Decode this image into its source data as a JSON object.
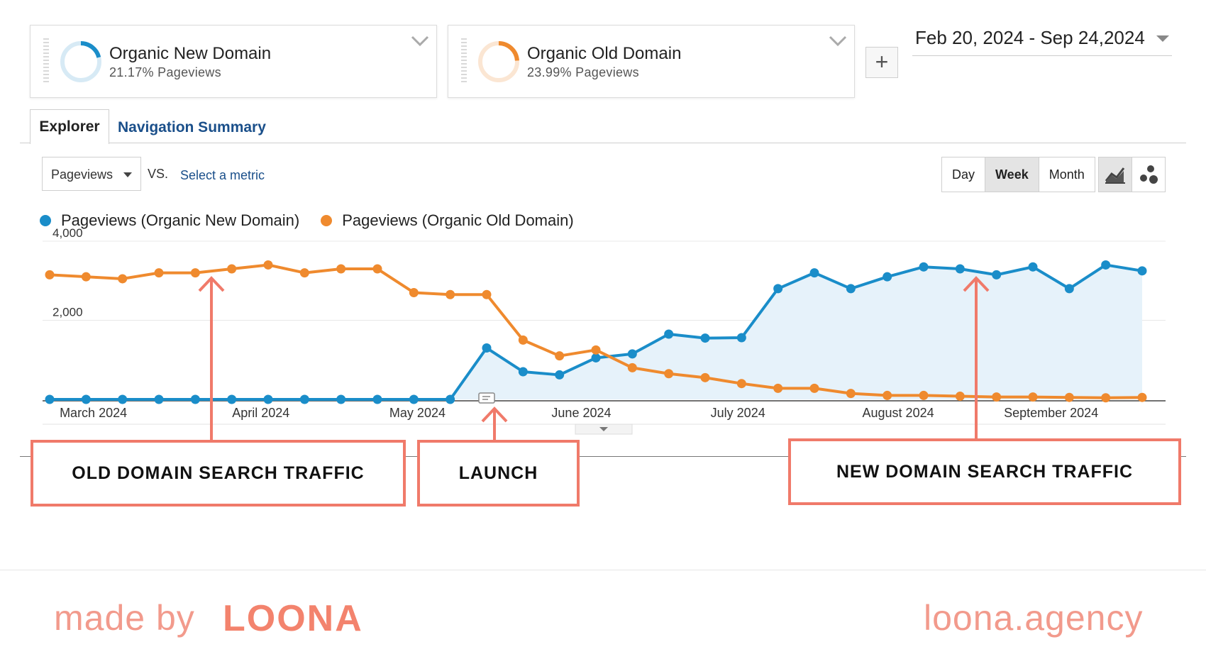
{
  "segments": [
    {
      "title": "Organic New Domain",
      "subtitle": "21.17% Pageviews",
      "color": "#1a8dc9",
      "share": 0.2117
    },
    {
      "title": "Organic Old Domain",
      "subtitle": "23.99% Pageviews",
      "color": "#ef8a2e",
      "share": 0.2399
    }
  ],
  "add_segment_label": "+",
  "date_range": "Feb 20, 2024 - Sep 24,2024",
  "tabs": [
    {
      "label": "Explorer",
      "active": true
    },
    {
      "label": "Navigation Summary",
      "active": false
    }
  ],
  "metric": {
    "selected": "Pageviews",
    "vs": "VS.",
    "compare_placeholder": "Select a metric"
  },
  "period_buttons": [
    {
      "label": "Day",
      "active": false
    },
    {
      "label": "Week",
      "active": true
    },
    {
      "label": "Month",
      "active": false
    }
  ],
  "view_buttons": [
    {
      "icon": "line-chart-icon",
      "active": true
    },
    {
      "icon": "motion-chart-icon",
      "active": false
    }
  ],
  "legend": [
    {
      "label": "Pageviews (Organic New Domain)",
      "color": "#1a8dc9"
    },
    {
      "label": "Pageviews (Organic Old Domain)",
      "color": "#ef8a2e"
    }
  ],
  "chart_data": {
    "type": "line",
    "title": "",
    "xlabel": "",
    "ylabel": "",
    "ylim": [
      0,
      4000
    ],
    "yticks": [
      "4,000",
      "2,000"
    ],
    "month_labels": [
      "March 2024",
      "April 2024",
      "May 2024",
      "June 2024",
      "July 2024",
      "August 2024",
      "September 2024"
    ],
    "x_weeks": [
      "2024-02-20",
      "2024-02-27",
      "2024-03-05",
      "2024-03-12",
      "2024-03-19",
      "2024-03-26",
      "2024-04-02",
      "2024-04-09",
      "2024-04-16",
      "2024-04-23",
      "2024-04-30",
      "2024-05-07",
      "2024-05-14",
      "2024-05-21",
      "2024-05-28",
      "2024-06-04",
      "2024-06-11",
      "2024-06-18",
      "2024-06-25",
      "2024-07-02",
      "2024-07-09",
      "2024-07-16",
      "2024-07-23",
      "2024-07-30",
      "2024-08-06",
      "2024-08-13",
      "2024-08-20",
      "2024-08-27",
      "2024-09-03",
      "2024-09-10",
      "2024-09-17"
    ],
    "series": [
      {
        "name": "Pageviews (Organic New Domain)",
        "color": "#1a8dc9",
        "area": true,
        "values": [
          0,
          0,
          0,
          0,
          0,
          0,
          0,
          0,
          0,
          0,
          0,
          0,
          1300,
          700,
          620,
          1050,
          1150,
          1650,
          1550,
          1560,
          2800,
          3200,
          2800,
          3100,
          3350,
          3300,
          3150,
          3350,
          2800,
          3400,
          3250
        ]
      },
      {
        "name": "Pageviews (Organic Old Domain)",
        "color": "#ef8a2e",
        "area": false,
        "values": [
          3150,
          3100,
          3050,
          3200,
          3200,
          3300,
          3400,
          3200,
          3300,
          3300,
          2700,
          2650,
          2650,
          1500,
          1100,
          1250,
          800,
          650,
          550,
          400,
          280,
          280,
          150,
          100,
          100,
          80,
          60,
          60,
          50,
          40,
          50
        ]
      }
    ],
    "annotation_marker": "2024-05-14",
    "grid": true,
    "legend_position": "top-left"
  },
  "callouts": [
    {
      "text": "OLD DOMAIN SEARCH TRAFFIC"
    },
    {
      "text": "LAUNCH"
    },
    {
      "text": "NEW DOMAIN SEARCH TRAFFIC"
    }
  ],
  "footer": {
    "made_by": "made by",
    "logo": "LOONA",
    "site": "loona.agency"
  },
  "accent_color": "#f07a6a"
}
